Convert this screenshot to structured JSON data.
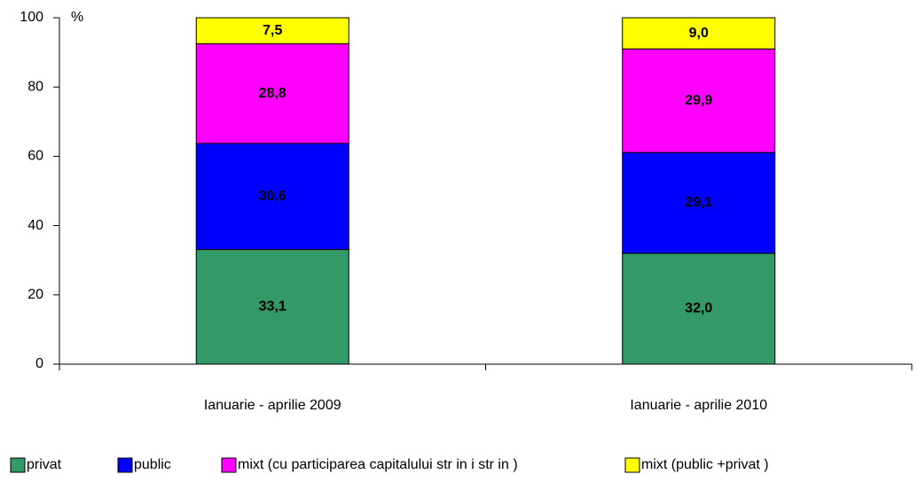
{
  "chart_data": {
    "type": "bar",
    "stacked": true,
    "ylabel": "%",
    "categories": [
      "Ianuarie - aprilie 2009",
      "Ianuarie - aprilie 2010"
    ],
    "series": [
      {
        "name": "privat",
        "color": "#339966",
        "values": [
          33.1,
          32.0
        ],
        "value_labels": [
          "33,1",
          "32,0"
        ]
      },
      {
        "name": "public",
        "color": "#0000ff",
        "values": [
          30.6,
          29.1
        ],
        "value_labels": [
          "30,6",
          "29,1"
        ]
      },
      {
        "name": "mixt (cu participarea capitalului str in i str in )",
        "color": "#ff00ff",
        "values": [
          28.8,
          29.9
        ],
        "value_labels": [
          "28,8",
          "29,9"
        ]
      },
      {
        "name": "mixt (public +privat )",
        "color": "#ffff00",
        "values": [
          7.5,
          9.0
        ],
        "value_labels": [
          "7,5",
          "9,0"
        ]
      }
    ],
    "ylim": [
      0,
      100
    ],
    "yticks": [
      0,
      20,
      40,
      60,
      80,
      100
    ],
    "grid": false,
    "legend": "bottom"
  }
}
